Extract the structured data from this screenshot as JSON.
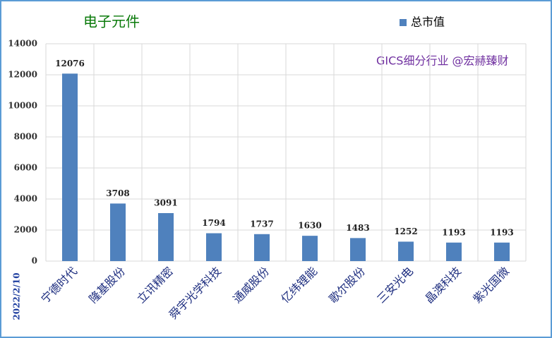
{
  "chart_data": {
    "type": "bar",
    "title": "电子元件",
    "annotation": "GICS细分行业 @宏赫臻财",
    "date_label": "2022/2/10",
    "categories": [
      "宁德时代",
      "隆基股份",
      "立讯精密",
      "舜宇光学科技",
      "通威股份",
      "亿纬锂能",
      "歌尔股份",
      "三安光电",
      "晶澳科技",
      "紫光国微"
    ],
    "series": [
      {
        "name": "总市值",
        "color": "#4f81bd",
        "values": [
          12076,
          3708,
          3091,
          1794,
          1737,
          1630,
          1483,
          1252,
          1193,
          1193
        ]
      }
    ],
    "ylim": [
      0,
      14000
    ],
    "yticks": [
      0,
      2000,
      4000,
      6000,
      8000,
      10000,
      12000,
      14000
    ],
    "grid": true
  }
}
